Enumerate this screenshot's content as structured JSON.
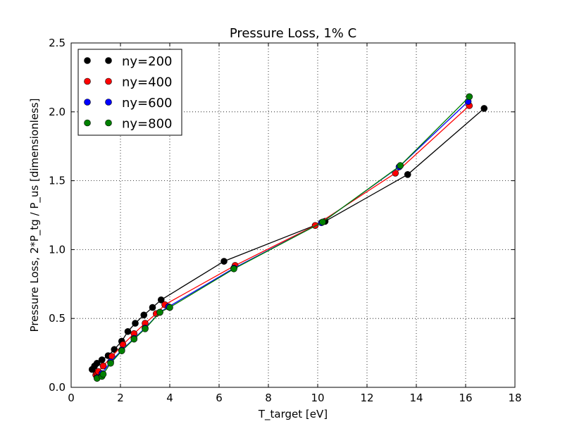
{
  "chart_data": {
    "type": "line",
    "title": "Pressure Loss, 1% C",
    "xlabel": "T_target [eV]",
    "ylabel": "Pressure Loss, 2*P_tg / P_us [dimensionless]",
    "xlim": [
      0,
      18
    ],
    "ylim": [
      0,
      2.5
    ],
    "xticks": [
      "0",
      "2",
      "4",
      "6",
      "8",
      "10",
      "12",
      "14",
      "16",
      "18"
    ],
    "yticks": [
      "0.0",
      "0.5",
      "1.0",
      "1.5",
      "2.0",
      "2.5"
    ],
    "grid": true,
    "legend_position": "top-left",
    "series": [
      {
        "name": "ny=200",
        "color": "#000000",
        "points": [
          [
            0.85,
            0.13
          ],
          [
            0.95,
            0.155
          ],
          [
            1.05,
            0.175
          ],
          [
            1.25,
            0.2
          ],
          [
            1.5,
            0.23
          ],
          [
            1.75,
            0.275
          ],
          [
            2.05,
            0.335
          ],
          [
            2.3,
            0.405
          ],
          [
            2.6,
            0.465
          ],
          [
            2.95,
            0.525
          ],
          [
            3.3,
            0.58
          ],
          [
            3.65,
            0.635
          ],
          [
            6.2,
            0.915
          ],
          [
            10.3,
            1.205
          ],
          [
            13.65,
            1.545
          ],
          [
            16.75,
            2.025
          ]
        ]
      },
      {
        "name": "ny=400",
        "color": "#ff0000",
        "points": [
          [
            1.0,
            0.09
          ],
          [
            1.05,
            0.1
          ],
          [
            1.1,
            0.115
          ],
          [
            1.3,
            0.155
          ],
          [
            1.65,
            0.225
          ],
          [
            2.1,
            0.31
          ],
          [
            2.55,
            0.39
          ],
          [
            3.0,
            0.465
          ],
          [
            3.45,
            0.535
          ],
          [
            3.8,
            0.6
          ],
          [
            6.65,
            0.885
          ],
          [
            9.9,
            1.175
          ],
          [
            13.15,
            1.555
          ],
          [
            16.15,
            2.045
          ]
        ]
      },
      {
        "name": "ny=600",
        "color": "#0000ff",
        "points": [
          [
            1.05,
            0.07
          ],
          [
            1.25,
            0.085
          ],
          [
            1.25,
            0.1
          ],
          [
            1.6,
            0.185
          ],
          [
            2.05,
            0.27
          ],
          [
            2.55,
            0.355
          ],
          [
            3.0,
            0.43
          ],
          [
            3.6,
            0.545
          ],
          [
            3.95,
            0.585
          ],
          [
            6.6,
            0.865
          ],
          [
            10.15,
            1.195
          ],
          [
            13.3,
            1.6
          ],
          [
            16.1,
            2.075
          ]
        ]
      },
      {
        "name": "ny=800",
        "color": "#008000",
        "points": [
          [
            1.05,
            0.065
          ],
          [
            1.25,
            0.08
          ],
          [
            1.3,
            0.095
          ],
          [
            1.6,
            0.175
          ],
          [
            2.05,
            0.265
          ],
          [
            2.55,
            0.35
          ],
          [
            3.0,
            0.425
          ],
          [
            3.6,
            0.545
          ],
          [
            4.0,
            0.58
          ],
          [
            6.6,
            0.86
          ],
          [
            10.2,
            1.2
          ],
          [
            13.35,
            1.61
          ],
          [
            16.15,
            2.11
          ]
        ]
      }
    ]
  }
}
